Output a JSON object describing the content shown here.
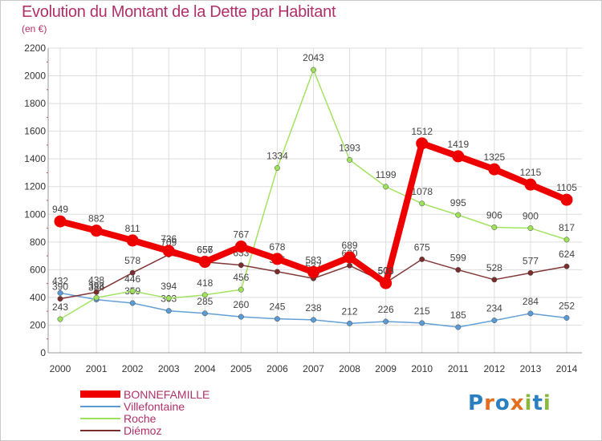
{
  "header": {
    "title": "Evolution du Montant de la Dette par Habitant",
    "unit": "(en €)"
  },
  "logo": {
    "text": "Proxiti",
    "colors": [
      "#2a7fc1",
      "#e36f1e",
      "#2a7fc1",
      "#e36f1e",
      "#8ab83c",
      "#2a7fc1",
      "#8ab83c"
    ]
  },
  "chart_data": {
    "type": "line",
    "title": "Evolution du Montant de la Dette par Habitant",
    "ylabel": "(en €)",
    "xlabel": "",
    "x": [
      "2000",
      "2001",
      "2002",
      "2003",
      "2004",
      "2005",
      "2006",
      "2007",
      "2008",
      "2009",
      "2010",
      "2011",
      "2012",
      "2013",
      "2014"
    ],
    "ylim": [
      0,
      2200
    ],
    "yticks": [
      0,
      200,
      400,
      600,
      800,
      1000,
      1200,
      1400,
      1600,
      1800,
      2000,
      2200
    ],
    "grid": true,
    "legend_position": "bottom-left",
    "series": [
      {
        "name": "Villefontaine",
        "color": "#5b9bd5",
        "values": [
          432,
          384,
          359,
          303,
          285,
          260,
          245,
          238,
          212,
          226,
          215,
          185,
          234,
          284,
          252
        ]
      },
      {
        "name": "Roche",
        "color": "#9ee15a",
        "values": [
          243,
          398,
          446,
          394,
          418,
          456,
          1334,
          2043,
          1393,
          1199,
          1078,
          995,
          906,
          900,
          817
        ]
      },
      {
        "name": "Diémoz",
        "color": "#7a2d2d",
        "values": [
          390,
          438,
          578,
          709,
          656,
          633,
          586,
          537,
          630,
          506,
          675,
          599,
          528,
          577,
          624
        ]
      },
      {
        "name": "BONNEFAMILLE",
        "color": "#ee0000",
        "values": [
          949,
          882,
          811,
          736,
          657,
          767,
          678,
          583,
          689,
          503,
          1512,
          1419,
          1325,
          1215,
          1105
        ]
      }
    ]
  }
}
